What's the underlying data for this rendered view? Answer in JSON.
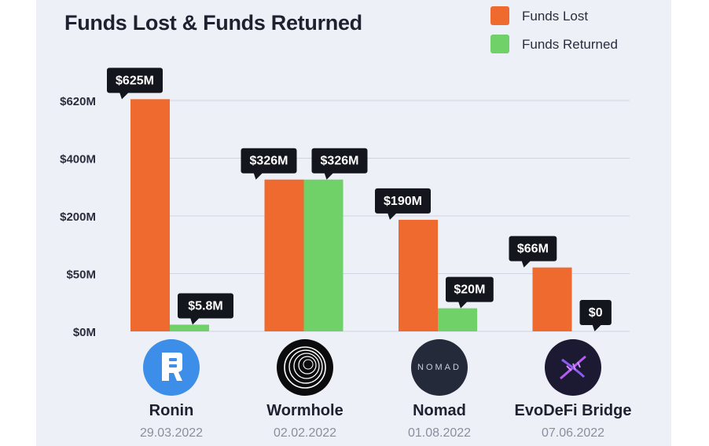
{
  "chart_data": {
    "type": "bar",
    "title": "Funds Lost & Funds Returned",
    "categories": [
      "Ronin",
      "Wormhole",
      "Nomad",
      "EvoDeFi Bridge"
    ],
    "dates": [
      "29.03.2022",
      "02.02.2022",
      "01.08.2022",
      "07.06.2022"
    ],
    "series": [
      {
        "name": "Funds Lost",
        "color": "#ee6a2e",
        "values": [
          625,
          326,
          190,
          66
        ],
        "labels": [
          "$625M",
          "$326M",
          "$190M",
          "$66M"
        ]
      },
      {
        "name": "Funds Returned",
        "color": "#6fd167",
        "values": [
          5.8,
          326,
          20,
          0
        ],
        "labels": [
          "$5.8M",
          "$326M",
          "$20M",
          "$0"
        ]
      }
    ],
    "ytick_values": [
      0,
      50,
      200,
      400,
      620
    ],
    "ytick_labels": [
      "$0M",
      "$50M",
      "$200M",
      "$400M",
      "$620M"
    ],
    "yscale": "non-linear (ticks evenly spaced)",
    "grid": true,
    "legend": "top-right",
    "xlabel": "",
    "ylabel": ""
  },
  "logos": [
    {
      "name": "ronin-logo-icon",
      "bg": "#3d8ee8"
    },
    {
      "name": "wormhole-logo-icon",
      "bg": "#0b0b0d"
    },
    {
      "name": "nomad-logo-icon",
      "bg": "#252a3a",
      "text": "NOMAD"
    },
    {
      "name": "evodefi-logo-icon",
      "bg": "#1c1a33"
    }
  ]
}
